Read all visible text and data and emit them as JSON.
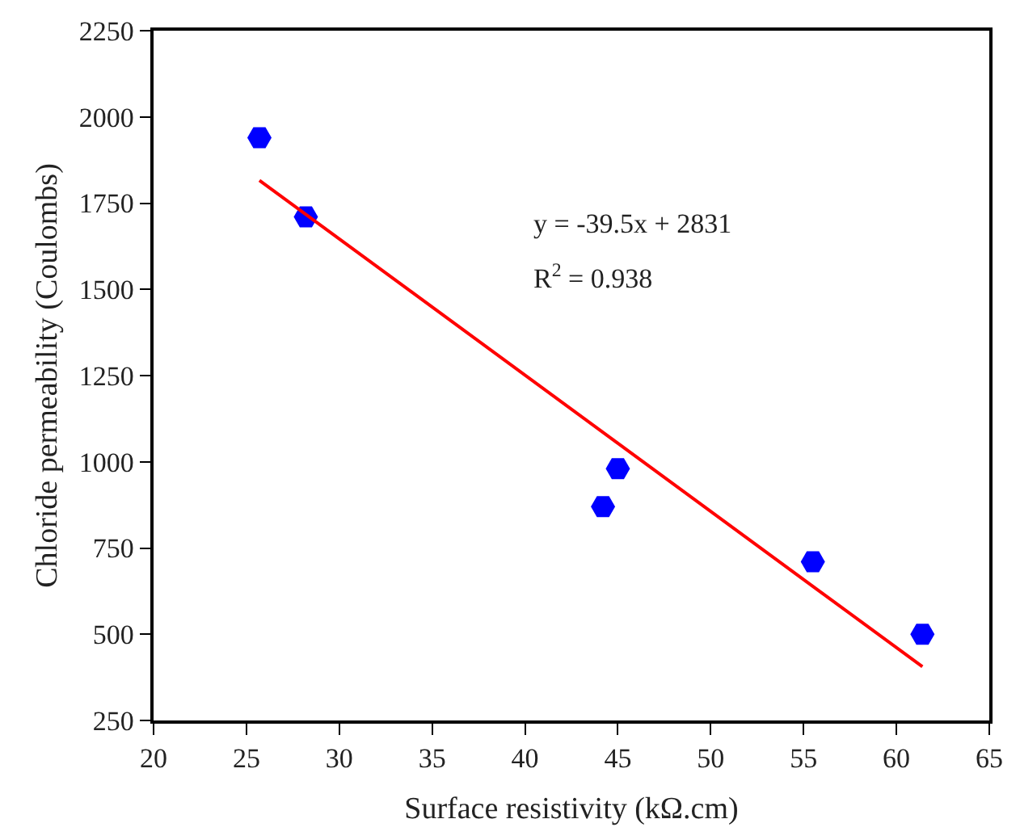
{
  "chart_data": {
    "type": "scatter",
    "xlabel": "Surface resistivity (kΩ.cm)",
    "ylabel": "Chloride permeability (Coulombs)",
    "x": [
      25.7,
      28.2,
      45.0,
      44.2,
      55.5,
      61.4
    ],
    "series": [
      {
        "color": "#0000ff",
        "values": [
          1940,
          1710,
          980,
          870,
          710,
          500
        ]
      },
      {
        "type": "line",
        "color": "#ff0000",
        "line_style": "solid",
        "x": [
          25.7,
          61.4
        ],
        "values": [
          1816,
          406
        ]
      }
    ],
    "annotations": [
      "y = -39.5x + 2831",
      "R$^{2}$ = 0.938"
    ],
    "xlim": [
      20,
      65
    ],
    "xticks": [
      20,
      25,
      30,
      35,
      40,
      45,
      50,
      55,
      60,
      65
    ],
    "ylim": [
      250,
      2250
    ],
    "yticks": [
      250,
      500,
      750,
      1000,
      1250,
      1500,
      1750,
      2000,
      2250
    ]
  }
}
